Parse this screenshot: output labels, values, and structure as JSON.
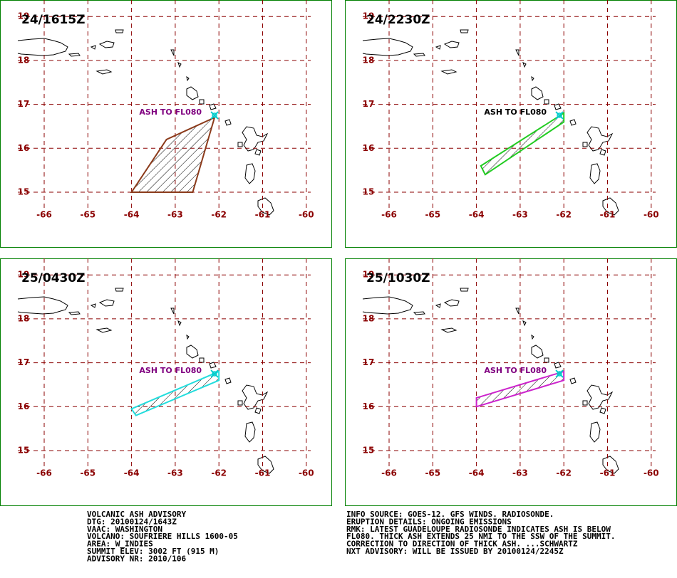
{
  "lon_ticks": [
    -66,
    -65,
    -64,
    -63,
    -62,
    -61,
    -60
  ],
  "lat_ticks": [
    15,
    16,
    17,
    18,
    19
  ],
  "panels": [
    {
      "time": "24/1615Z",
      "annotation": "ASH TO FL080",
      "annotation_color": "#800080",
      "ash_color": "#8b3a1a",
      "ash_area": [
        [
          -62.1,
          16.7
        ],
        [
          -63.2,
          16.2
        ],
        [
          -64.0,
          15.0
        ],
        [
          -62.6,
          15.0
        ]
      ]
    },
    {
      "time": "24/2230Z",
      "annotation": "ASH  TO  FL080",
      "annotation_color": "#000000",
      "ash_color": "#22cc22",
      "ash_area": [
        [
          -62.0,
          16.8
        ],
        [
          -62.0,
          16.6
        ],
        [
          -63.8,
          15.4
        ],
        [
          -63.9,
          15.6
        ]
      ]
    },
    {
      "time": "25/0430Z",
      "annotation": "ASH TO FL080",
      "annotation_color": "#800080",
      "ash_color": "#22dddd",
      "ash_area": [
        [
          -62.0,
          16.8
        ],
        [
          -62.0,
          16.6
        ],
        [
          -63.9,
          15.8
        ],
        [
          -64.0,
          15.95
        ]
      ]
    },
    {
      "time": "25/1030Z",
      "annotation": "ASH TO FL080",
      "annotation_color": "#800080",
      "ash_color": "#cc22cc",
      "ash_area": [
        [
          -62.0,
          16.8
        ],
        [
          -62.0,
          16.6
        ],
        [
          -64.0,
          16.0
        ],
        [
          -64.0,
          16.2
        ]
      ]
    }
  ],
  "advisory_left": [
    "VOLCANIC ASH ADVISORY",
    "DTG: 20100124/1643Z",
    "VAAC: WASHINGTON",
    "VOLCANO: SOUFRIERE HILLS 1600-05",
    "AREA: W_INDIES",
    "SUMMIT ELEV: 3002 FT (915 M)",
    "ADVISORY NR: 2010/106"
  ],
  "advisory_right": [
    "INFO SOURCE: GOES-12. GFS WINDS. RADIOSONDE.",
    "ERUPTION DETAILS: ONGOING EMISSIONS",
    "RMK: LATEST GUADELOUPE RADIOSONDE INDICATES ASH IS BELOW",
    "FL080. THICK ASH EXTENDS 25 NMI TO THE SSW OF THE SUMMIT.",
    "CORRECTION TO DIRECTION OF THICK ASH. ...SCHWARTZ",
    "NXT ADVISORY: WILL BE ISSUED BY 20100124/2245Z"
  ]
}
